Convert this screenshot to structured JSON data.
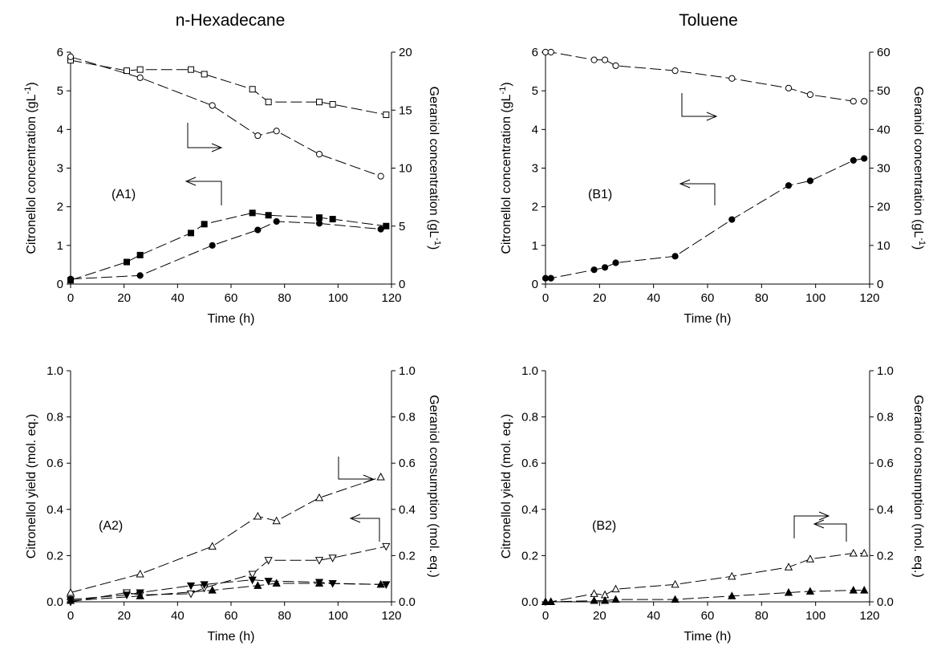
{
  "column_titles": [
    "n-Hexadecane",
    "Toluene"
  ],
  "chart_data": [
    {
      "type": "line",
      "panel_label": "(A1)",
      "xlabel": "Time (h)",
      "ylabel_left": "Citronellol concentration (gL-1)",
      "ylabel_right": "Geraniol concentration (gL-1)",
      "xlim": [
        0,
        120
      ],
      "ylim_left": [
        0,
        6
      ],
      "ylim_right": [
        0,
        20
      ],
      "x_ticks": [
        0,
        20,
        40,
        60,
        80,
        100,
        120
      ],
      "y_ticks_left": [
        0,
        1,
        2,
        3,
        4,
        5,
        6
      ],
      "y_ticks_right": [
        0,
        5,
        10,
        15,
        20
      ],
      "grid": false,
      "series": [
        {
          "axis": "right",
          "marker": "square-open",
          "x": [
            0,
            21,
            26,
            45,
            50,
            68,
            74,
            93,
            98,
            118
          ],
          "y": [
            19.3,
            18.4,
            18.5,
            18.5,
            18.1,
            16.8,
            15.7,
            15.7,
            15.5,
            14.6
          ]
        },
        {
          "axis": "right",
          "marker": "circle-open",
          "x": [
            0,
            26,
            53,
            70,
            77,
            93,
            116
          ],
          "y": [
            19.6,
            17.8,
            15.4,
            12.8,
            13.2,
            11.2,
            9.3
          ]
        },
        {
          "axis": "left",
          "marker": "square-filled",
          "x": [
            0,
            21,
            26,
            45,
            50,
            68,
            74,
            93,
            98,
            118
          ],
          "y": [
            0.1,
            0.57,
            0.75,
            1.32,
            1.55,
            1.84,
            1.78,
            1.72,
            1.68,
            1.5
          ]
        },
        {
          "axis": "left",
          "marker": "circle-filled",
          "x": [
            0,
            26,
            53,
            70,
            77,
            93,
            116
          ],
          "y": [
            0.13,
            0.22,
            1.0,
            1.4,
            1.62,
            1.57,
            1.42
          ]
        }
      ]
    },
    {
      "type": "line",
      "panel_label": "(B1)",
      "xlabel": "Time (h)",
      "ylabel_left": "Citronellol concentration (gL-1)",
      "ylabel_right": "Geraniol concentration (gL-1)",
      "xlim": [
        0,
        120
      ],
      "ylim_left": [
        0,
        6
      ],
      "ylim_right": [
        0,
        60
      ],
      "x_ticks": [
        0,
        20,
        40,
        60,
        80,
        100,
        120
      ],
      "y_ticks_left": [
        0,
        1,
        2,
        3,
        4,
        5,
        6
      ],
      "y_ticks_right": [
        0,
        10,
        20,
        30,
        40,
        50,
        60
      ],
      "grid": false,
      "series": [
        {
          "axis": "right",
          "marker": "circle-open",
          "x": [
            0,
            2,
            18,
            22,
            26,
            48,
            69,
            90,
            98,
            114,
            118
          ],
          "y": [
            60,
            60,
            58,
            58,
            56.5,
            55.2,
            53.2,
            50.7,
            49,
            47.3,
            47.3
          ]
        },
        {
          "axis": "left",
          "marker": "circle-filled",
          "x": [
            0,
            2,
            18,
            22,
            26,
            48,
            69,
            90,
            98,
            114,
            118
          ],
          "y": [
            0.15,
            0.15,
            0.37,
            0.43,
            0.55,
            0.72,
            1.67,
            2.55,
            2.67,
            3.2,
            3.25
          ]
        }
      ]
    },
    {
      "type": "line",
      "panel_label": "(A2)",
      "xlabel": "Time (h)",
      "ylabel_left": "Citronellol yield (mol. eq.)",
      "ylabel_right": "Geraniol consumption (mol. eq.)",
      "xlim": [
        0,
        120
      ],
      "ylim_left": [
        0,
        1.0
      ],
      "ylim_right": [
        0,
        1.0
      ],
      "x_ticks": [
        0,
        20,
        40,
        60,
        80,
        100,
        120
      ],
      "y_ticks_left": [
        0.0,
        0.2,
        0.4,
        0.6,
        0.8,
        1.0
      ],
      "y_ticks_right": [
        0.0,
        0.2,
        0.4,
        0.6,
        0.8,
        1.0
      ],
      "grid": false,
      "series": [
        {
          "axis": "right",
          "marker": "triangle-up-open",
          "x": [
            0,
            26,
            53,
            70,
            77,
            93,
            116
          ],
          "y": [
            0.04,
            0.12,
            0.24,
            0.37,
            0.35,
            0.45,
            0.54
          ]
        },
        {
          "axis": "right",
          "marker": "triangle-down-open",
          "x": [
            0,
            21,
            26,
            45,
            50,
            68,
            74,
            93,
            98,
            118
          ],
          "y": [
            0.0,
            0.04,
            0.03,
            0.035,
            0.06,
            0.12,
            0.18,
            0.18,
            0.19,
            0.24
          ]
        },
        {
          "axis": "left",
          "marker": "triangle-down-filled",
          "x": [
            0,
            21,
            26,
            45,
            50,
            68,
            74,
            93,
            98,
            118
          ],
          "y": [
            0.01,
            0.03,
            0.04,
            0.07,
            0.075,
            0.095,
            0.09,
            0.085,
            0.08,
            0.075
          ]
        },
        {
          "axis": "left",
          "marker": "triangle-up-filled",
          "x": [
            0,
            26,
            53,
            70,
            77,
            93,
            116
          ],
          "y": [
            0.005,
            0.025,
            0.05,
            0.07,
            0.08,
            0.08,
            0.075
          ]
        }
      ]
    },
    {
      "type": "line",
      "panel_label": "(B2)",
      "xlabel": "Time (h)",
      "ylabel_left": "Citronellol yield (mol. eq.)",
      "ylabel_right": "Geraniol consumption (mol. eq.)",
      "xlim": [
        0,
        120
      ],
      "ylim_left": [
        0,
        1.0
      ],
      "ylim_right": [
        0,
        1.0
      ],
      "x_ticks": [
        0,
        20,
        40,
        60,
        80,
        100,
        120
      ],
      "y_ticks_left": [
        0.0,
        0.2,
        0.4,
        0.6,
        0.8,
        1.0
      ],
      "y_ticks_right": [
        0.0,
        0.2,
        0.4,
        0.6,
        0.8,
        1.0
      ],
      "grid": false,
      "series": [
        {
          "axis": "right",
          "marker": "triangle-up-open",
          "x": [
            0,
            2,
            18,
            22,
            26,
            48,
            69,
            90,
            98,
            114,
            118
          ],
          "y": [
            0.0,
            0.0,
            0.035,
            0.03,
            0.055,
            0.075,
            0.11,
            0.15,
            0.185,
            0.21,
            0.21
          ]
        },
        {
          "axis": "left",
          "marker": "triangle-up-filled",
          "x": [
            0,
            2,
            18,
            22,
            26,
            48,
            69,
            90,
            98,
            114,
            118
          ],
          "y": [
            0.0,
            0.0,
            0.005,
            0.005,
            0.01,
            0.01,
            0.025,
            0.04,
            0.045,
            0.05,
            0.05
          ]
        }
      ]
    }
  ]
}
